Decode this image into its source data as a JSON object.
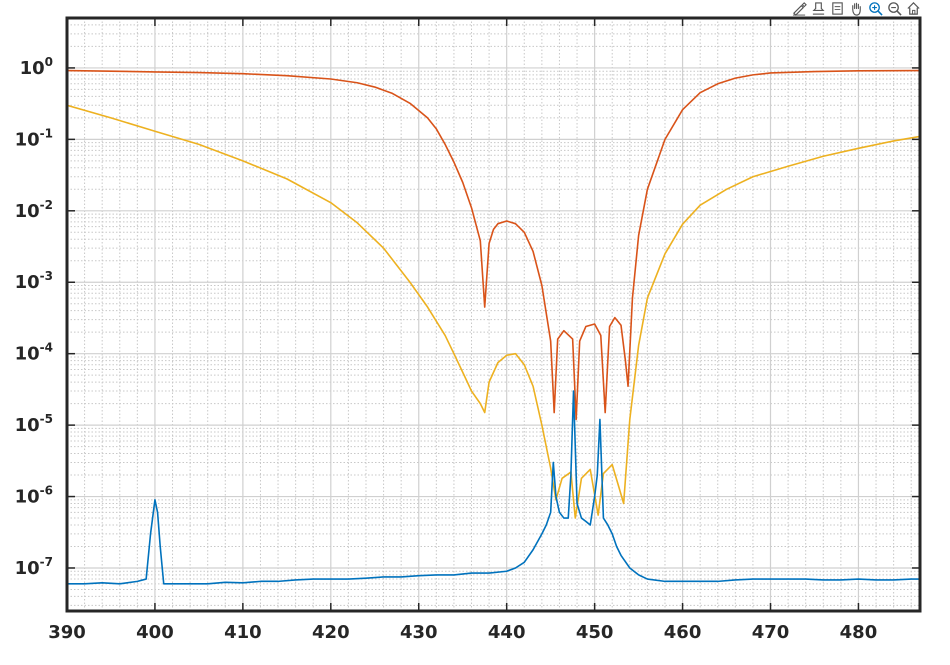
{
  "toolbar": {
    "buttons": [
      {
        "name": "brush-icon"
      },
      {
        "name": "data-tips-icon"
      },
      {
        "name": "legend-icon"
      },
      {
        "name": "pan-icon"
      },
      {
        "name": "zoom-in-icon"
      },
      {
        "name": "zoom-out-icon"
      },
      {
        "name": "home-icon"
      }
    ]
  },
  "chart_data": {
    "type": "line",
    "title": "",
    "xlabel": "",
    "ylabel": "",
    "xlim": [
      390,
      487
    ],
    "ylim": [
      2.5e-08,
      5
    ],
    "yscale": "log",
    "grid": true,
    "minor_grid": true,
    "x_ticks": [
      390,
      400,
      410,
      420,
      430,
      440,
      450,
      460,
      470,
      480
    ],
    "y_ticks": [
      {
        "value": 1e-07,
        "base": "10",
        "exp": "-7"
      },
      {
        "value": 1e-06,
        "base": "10",
        "exp": "-6"
      },
      {
        "value": 1e-05,
        "base": "10",
        "exp": "-5"
      },
      {
        "value": 0.0001,
        "base": "10",
        "exp": "-4"
      },
      {
        "value": 0.001,
        "base": "10",
        "exp": "-3"
      },
      {
        "value": 0.01,
        "base": "10",
        "exp": "-2"
      },
      {
        "value": 0.1,
        "base": "10",
        "exp": "-1"
      },
      {
        "value": 1,
        "base": "10",
        "exp": "0"
      }
    ],
    "series": [
      {
        "color": "#d95319",
        "x": [
          390,
          395,
          400,
          405,
          410,
          415,
          420,
          423,
          425,
          427,
          429,
          431,
          432,
          433,
          434,
          435,
          436,
          437,
          437.5,
          438,
          438.5,
          439,
          440,
          441,
          442,
          443,
          444,
          445,
          445.4,
          445.8,
          446.5,
          447.5,
          447.9,
          448.3,
          449,
          450,
          450.7,
          451.2,
          451.7,
          452.3,
          453,
          453.5,
          453.8,
          454.3,
          455,
          456,
          458,
          460,
          462,
          464,
          466,
          468,
          470,
          475,
          480,
          487
        ],
        "y": [
          0.92,
          0.9,
          0.88,
          0.86,
          0.83,
          0.78,
          0.7,
          0.62,
          0.54,
          0.44,
          0.32,
          0.2,
          0.14,
          0.085,
          0.048,
          0.025,
          0.011,
          0.0038,
          0.00045,
          0.0035,
          0.0055,
          0.0066,
          0.0072,
          0.0066,
          0.005,
          0.0027,
          0.0009,
          0.00015,
          1.5e-05,
          0.00016,
          0.00021,
          0.00016,
          1.2e-05,
          0.00015,
          0.00024,
          0.00026,
          0.00018,
          1.5e-05,
          0.00024,
          0.00032,
          0.00025,
          8e-05,
          3.5e-05,
          0.0006,
          0.0045,
          0.02,
          0.1,
          0.26,
          0.45,
          0.6,
          0.72,
          0.8,
          0.85,
          0.89,
          0.91,
          0.92
        ]
      },
      {
        "color": "#edb120",
        "x": [
          390,
          395,
          400,
          405,
          410,
          415,
          420,
          423,
          426,
          429,
          431,
          433,
          434,
          435,
          436,
          437,
          437.5,
          438,
          439,
          440,
          441,
          442,
          443,
          444,
          445,
          445.6,
          446.3,
          447.3,
          447.8,
          448.5,
          449.5,
          450.4,
          451,
          452,
          452.8,
          453.3,
          454,
          455,
          456,
          458,
          460,
          462,
          465,
          468,
          472,
          476,
          480,
          484,
          487
        ],
        "y": [
          0.3,
          0.2,
          0.13,
          0.085,
          0.05,
          0.028,
          0.013,
          0.0068,
          0.003,
          0.001,
          0.00045,
          0.00018,
          0.0001,
          5.5e-05,
          3e-05,
          2e-05,
          1.5e-05,
          4e-05,
          7.5e-05,
          9.5e-05,
          0.0001,
          7e-05,
          3.5e-05,
          1e-05,
          2.5e-06,
          9e-07,
          1.8e-06,
          2.2e-06,
          5e-07,
          1.8e-06,
          2.4e-06,
          5.5e-07,
          2.1e-06,
          2.8e-06,
          1.3e-06,
          8e-07,
          1.2e-05,
          0.00013,
          0.0006,
          0.0025,
          0.0065,
          0.012,
          0.02,
          0.03,
          0.042,
          0.058,
          0.075,
          0.095,
          0.11
        ]
      },
      {
        "color": "#0072bd",
        "x": [
          390,
          392,
          394,
          396,
          398,
          399,
          399.5,
          400,
          400.3,
          400.6,
          401,
          402,
          404,
          406,
          408,
          410,
          412,
          414,
          416,
          418,
          420,
          422,
          424,
          426,
          428,
          430,
          432,
          434,
          436,
          438,
          440,
          441,
          442,
          443,
          444,
          444.5,
          445,
          445.3,
          445.6,
          446,
          446.5,
          447,
          447.3,
          447.6,
          448,
          448.5,
          449,
          449.5,
          450,
          450.3,
          450.6,
          451,
          451.5,
          452,
          452.5,
          453,
          454,
          455,
          456,
          458,
          460,
          462,
          464,
          466,
          468,
          470,
          472,
          474,
          476,
          478,
          480,
          482,
          484,
          486,
          487
        ],
        "y": [
          6e-08,
          6e-08,
          6.2e-08,
          6e-08,
          6.5e-08,
          7e-08,
          3e-07,
          9e-07,
          6e-07,
          2e-07,
          6e-08,
          6e-08,
          6e-08,
          6e-08,
          6.3e-08,
          6.2e-08,
          6.5e-08,
          6.5e-08,
          6.8e-08,
          7e-08,
          7e-08,
          7e-08,
          7.2e-08,
          7.5e-08,
          7.5e-08,
          7.8e-08,
          8e-08,
          8e-08,
          8.5e-08,
          8.5e-08,
          9e-08,
          1e-07,
          1.2e-07,
          1.8e-07,
          3e-07,
          4e-07,
          6e-07,
          3e-06,
          1e-06,
          6e-07,
          5e-07,
          5e-07,
          2e-06,
          3e-05,
          8e-07,
          5e-07,
          4.5e-07,
          4e-07,
          1e-06,
          2e-06,
          1.2e-05,
          5e-07,
          4e-07,
          3e-07,
          2e-07,
          1.5e-07,
          1e-07,
          8e-08,
          7e-08,
          6.5e-08,
          6.5e-08,
          6.5e-08,
          6.5e-08,
          6.8e-08,
          7e-08,
          7e-08,
          7e-08,
          7e-08,
          6.8e-08,
          6.8e-08,
          7e-08,
          6.8e-08,
          6.8e-08,
          7e-08,
          7e-08
        ]
      }
    ]
  }
}
